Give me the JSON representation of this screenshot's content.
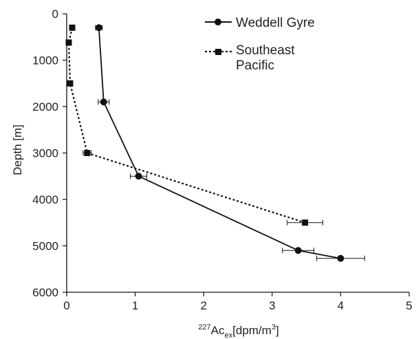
{
  "chart_data": {
    "type": "line",
    "xlabel": {
      "base": "227",
      "main": "Ac",
      "sub": "ex",
      "unit_pre": "[dpm/m",
      "unit_sup": "3",
      "unit_post": "]"
    },
    "ylabel": "Depth [m]",
    "xlim": [
      0,
      5
    ],
    "ylim": [
      0,
      6000
    ],
    "y_inverted": true,
    "x_ticks": [
      "0",
      "1",
      "2",
      "3",
      "4",
      "5"
    ],
    "y_ticks": [
      "0",
      "1000",
      "2000",
      "3000",
      "4000",
      "5000",
      "6000"
    ],
    "grid": false,
    "legend_position": "top-right",
    "series": [
      {
        "name": "Weddell Gyre",
        "line_style": "solid",
        "marker": "circle",
        "color": "#111111",
        "points": [
          {
            "x": 0.47,
            "y": 300,
            "xerr": 0.05
          },
          {
            "x": 0.54,
            "y": 1900,
            "xerr": 0.08
          },
          {
            "x": 1.05,
            "y": 3500,
            "xerr": 0.12
          },
          {
            "x": 3.38,
            "y": 5100,
            "xerr": 0.23
          },
          {
            "x": 4.0,
            "y": 5270,
            "xerr": 0.35
          }
        ]
      },
      {
        "name": "Southeast\nPacific",
        "name_lines": [
          "Southeast",
          "Pacific"
        ],
        "line_style": "dotted",
        "marker": "square",
        "color": "#111111",
        "points": [
          {
            "x": 0.08,
            "y": 300,
            "xerr": 0
          },
          {
            "x": 0.03,
            "y": 620,
            "xerr": 0
          },
          {
            "x": 0.05,
            "y": 1500,
            "xerr": 0
          },
          {
            "x": 0.3,
            "y": 3000,
            "xerr": 0.06
          },
          {
            "x": 3.48,
            "y": 4500,
            "xerr": 0.26
          }
        ]
      }
    ]
  }
}
